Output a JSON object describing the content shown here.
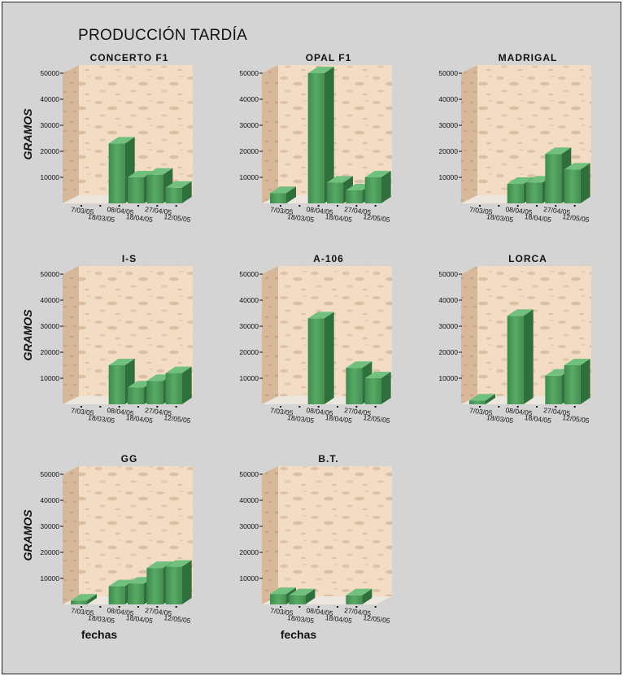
{
  "title": "PRODUCCIÓN TARDÍA",
  "colors": {
    "background": "#d4d4d4",
    "wall": "#f3dcc4",
    "bar": "#4f9f5d"
  },
  "chart_data": [
    {
      "type": "bar",
      "title": "CONCERTO F1",
      "ylabel": "GRAMOS",
      "xlabel": "",
      "ylim": [
        0,
        50000
      ],
      "yticks": [
        "10000",
        "20000",
        "30000",
        "40000",
        "50000"
      ],
      "categories": [
        "7/03/05",
        "18/03/05",
        "08/04/05",
        "18/04/05",
        "27/04/05",
        "12/05/05"
      ],
      "values": [
        0,
        0,
        23000,
        10000,
        11000,
        6000
      ]
    },
    {
      "type": "bar",
      "title": "OPAL F1",
      "ylabel": "",
      "xlabel": "",
      "ylim": [
        0,
        50000
      ],
      "yticks": [
        "10000",
        "20000",
        "30000",
        "40000",
        "50000"
      ],
      "categories": [
        "7/03/05",
        "18/03/05",
        "08/04/05",
        "18/04/05",
        "27/04/05",
        "12/05/05"
      ],
      "values": [
        4000,
        0,
        50000,
        8000,
        5000,
        10000
      ]
    },
    {
      "type": "bar",
      "title": "MADRIGAL",
      "ylabel": "",
      "xlabel": "",
      "ylim": [
        0,
        50000
      ],
      "yticks": [
        "10000",
        "20000",
        "30000",
        "40000",
        "50000"
      ],
      "categories": [
        "7/03/05",
        "18/03/05",
        "08/04/05",
        "18/04/05",
        "27/04/05",
        "12/05/05"
      ],
      "values": [
        0,
        0,
        7500,
        8000,
        19000,
        13000
      ]
    },
    {
      "type": "bar",
      "title": "I-S",
      "ylabel": "GRAMOS",
      "xlabel": "",
      "ylim": [
        0,
        50000
      ],
      "yticks": [
        "10000",
        "20000",
        "30000",
        "40000",
        "50000"
      ],
      "categories": [
        "7/03/05",
        "18/03/05",
        "08/04/05",
        "18/04/05",
        "27/04/05",
        "12/05/05"
      ],
      "values": [
        0,
        0,
        15000,
        6500,
        9000,
        12000
      ]
    },
    {
      "type": "bar",
      "title": "A-106",
      "ylabel": "",
      "xlabel": "",
      "ylim": [
        0,
        50000
      ],
      "yticks": [
        "10000",
        "20000",
        "30000",
        "40000",
        "50000"
      ],
      "categories": [
        "7/03/05",
        "18/03/05",
        "08/04/05",
        "18/04/05",
        "27/04/05",
        "12/05/05"
      ],
      "values": [
        0,
        0,
        33000,
        0,
        14000,
        10000
      ]
    },
    {
      "type": "bar",
      "title": "LORCA",
      "ylabel": "",
      "xlabel": "",
      "ylim": [
        0,
        50000
      ],
      "yticks": [
        "10000",
        "20000",
        "30000",
        "40000",
        "50000"
      ],
      "categories": [
        "7/03/05",
        "18/03/05",
        "08/04/05",
        "18/04/05",
        "27/04/05",
        "12/05/05"
      ],
      "values": [
        1500,
        0,
        34000,
        0,
        11000,
        15000
      ]
    },
    {
      "type": "bar",
      "title": "GG",
      "ylabel": "GRAMOS",
      "xlabel": "fechas",
      "ylim": [
        0,
        50000
      ],
      "yticks": [
        "10000",
        "20000",
        "30000",
        "40000",
        "50000"
      ],
      "categories": [
        "7/03/05",
        "18/03/05",
        "08/04/05",
        "18/04/05",
        "27/04/05",
        "12/05/05"
      ],
      "values": [
        1500,
        0,
        7000,
        8000,
        14000,
        14500
      ]
    },
    {
      "type": "bar",
      "title": "B.T.",
      "ylabel": "",
      "xlabel": "fechas",
      "ylim": [
        0,
        50000
      ],
      "yticks": [
        "10000",
        "20000",
        "30000",
        "40000",
        "50000"
      ],
      "categories": [
        "7/03/05",
        "18/03/05",
        "08/04/05",
        "18/04/05",
        "27/04/05",
        "12/05/05"
      ],
      "values": [
        4000,
        3500,
        0,
        0,
        3500,
        0
      ]
    }
  ]
}
